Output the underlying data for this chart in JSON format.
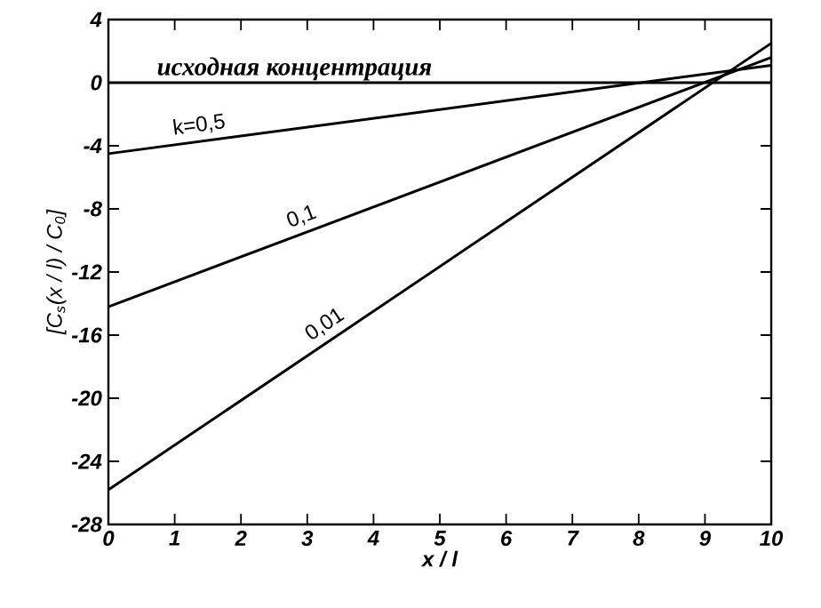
{
  "chart_data": {
    "type": "line",
    "xlabel": "x / l",
    "ylabel": "[C$_{s}$(x / l) / C$_{0}$]",
    "x": [
      0,
      10
    ],
    "series": [
      {
        "name": "k=0,5",
        "color": "#000000",
        "values": [
          -4.5,
          1.1
        ]
      },
      {
        "name": "0,1",
        "color": "#000000",
        "values": [
          -14.2,
          1.6
        ]
      },
      {
        "name": "0,01",
        "color": "#000000",
        "values": [
          -25.8,
          2.5
        ]
      }
    ],
    "xlim": [
      0,
      10
    ],
    "ylim": [
      -28,
      4
    ],
    "xticks": [
      0,
      1,
      2,
      3,
      4,
      5,
      6,
      7,
      8,
      9,
      10
    ],
    "yticks": [
      -28,
      -24,
      -20,
      -16,
      -12,
      -8,
      -4,
      0,
      4
    ],
    "ref_lines": [
      {
        "axis": "y",
        "value": 0,
        "label": "исходная концентрация"
      }
    ],
    "grid": false,
    "legend": false,
    "marker": "none",
    "line_style": "solid"
  }
}
